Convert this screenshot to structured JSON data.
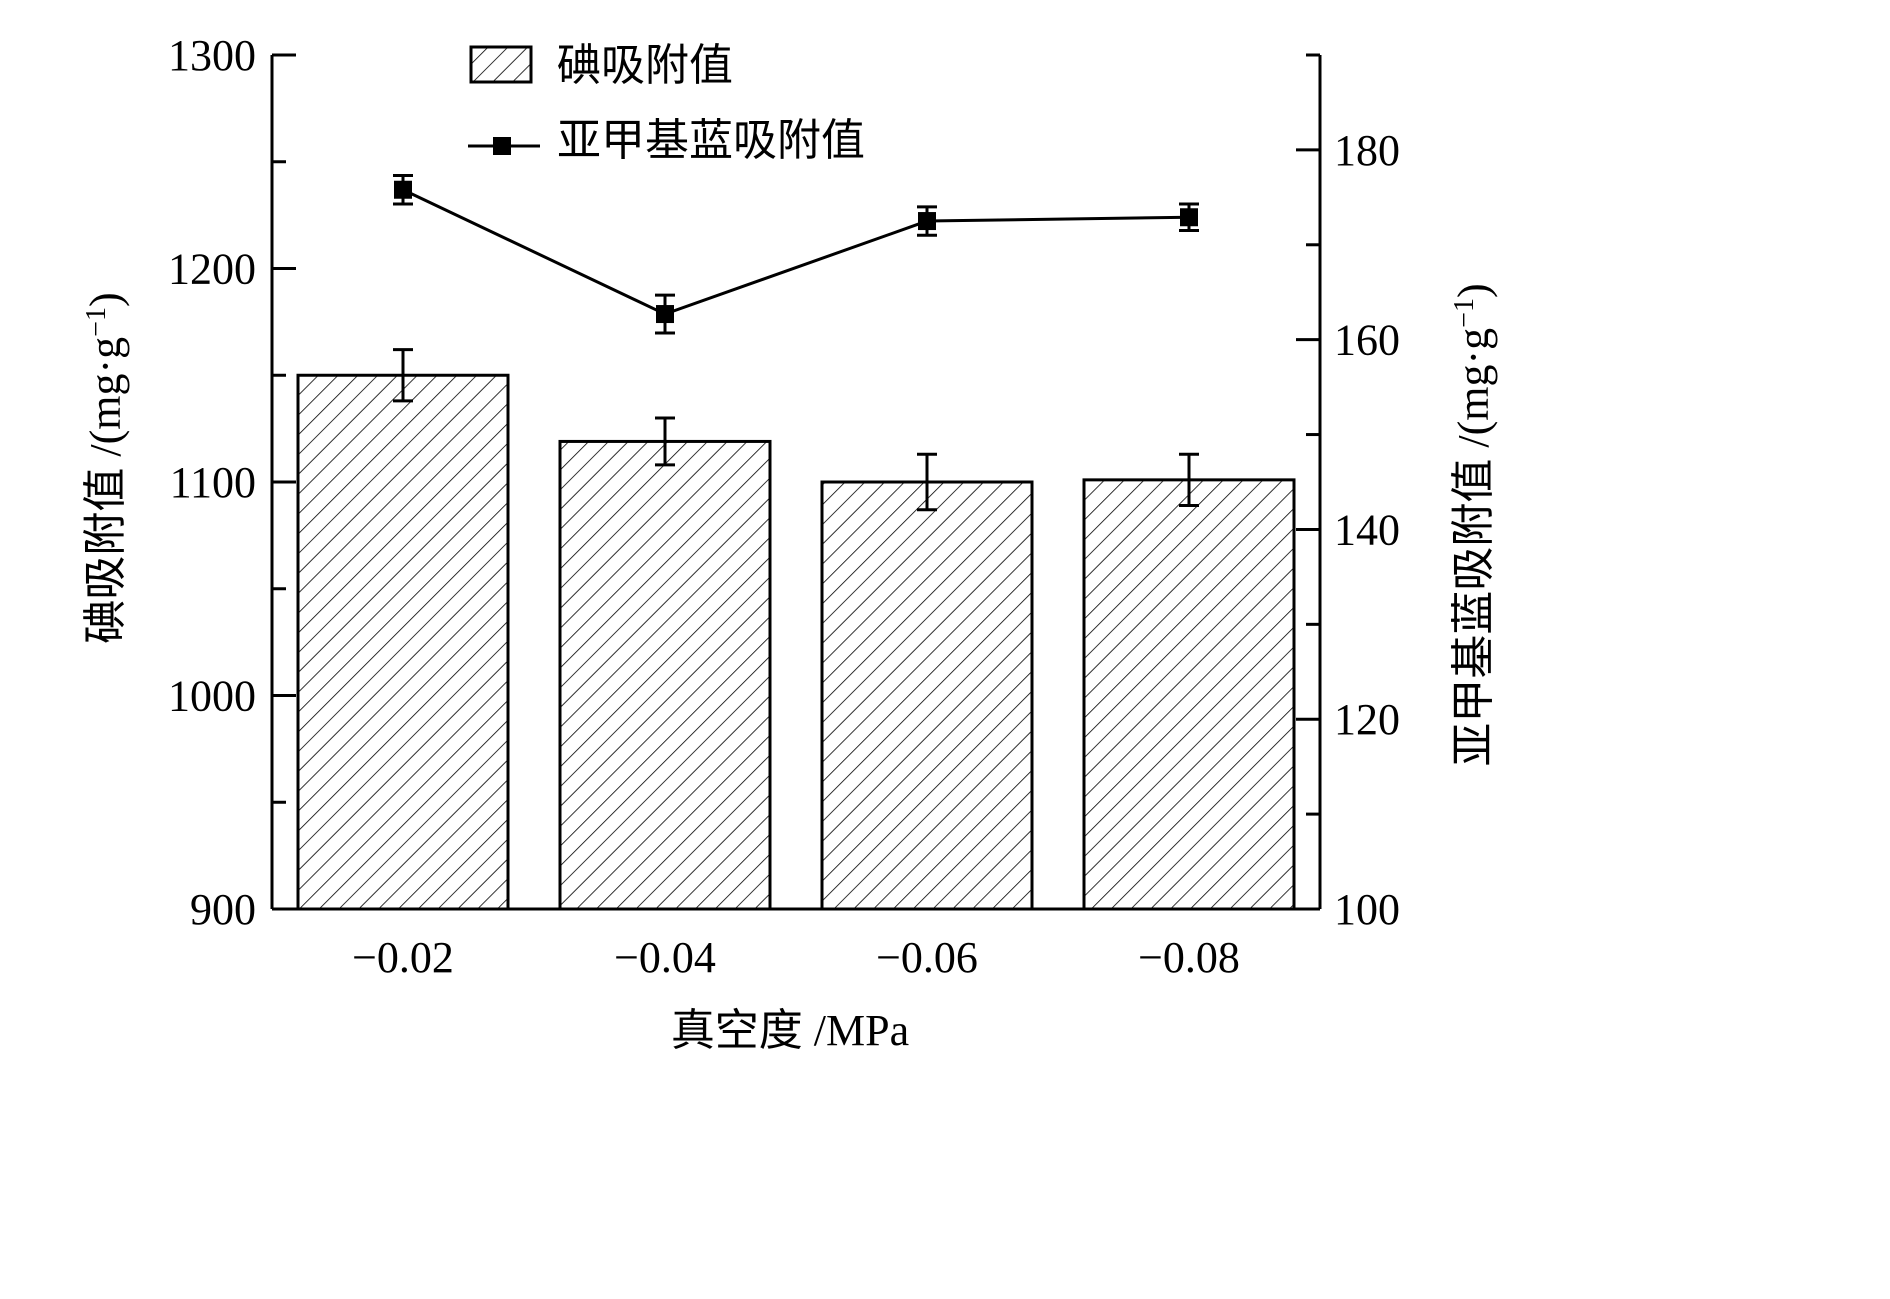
{
  "chart_data": {
    "type": "bar",
    "categories": [
      "−0.02",
      "−0.04",
      "−0.06",
      "−0.08"
    ],
    "xlabel": "真空度 /MPa",
    "y_left": {
      "label_main": "碘吸附值 /(mg·g",
      "label_sup": "−1",
      "label_close": ")",
      "ylim": [
        900,
        1300
      ],
      "ticks": [
        900,
        1000,
        1100,
        1200,
        1300
      ]
    },
    "y_right": {
      "label_main": "亚甲基蓝吸附值 /(mg·g",
      "label_sup": "−1",
      "label_close": ")",
      "ylim": [
        100,
        190
      ],
      "ticks": [
        100,
        120,
        140,
        160,
        180
      ]
    },
    "series": [
      {
        "name": "碘吸附值",
        "kind": "bar",
        "axis": "left",
        "values": [
          1150,
          1119,
          1100,
          1101
        ],
        "errors": [
          12,
          11,
          13,
          12
        ]
      },
      {
        "name": "亚甲基蓝吸附值",
        "kind": "line",
        "axis": "right",
        "marker": "square",
        "values": [
          175.8,
          162.7,
          172.5,
          172.9
        ],
        "errors": [
          1.5,
          2.0,
          1.5,
          1.4
        ]
      }
    ],
    "legend": {
      "placement": "top-left"
    },
    "grid": false
  }
}
